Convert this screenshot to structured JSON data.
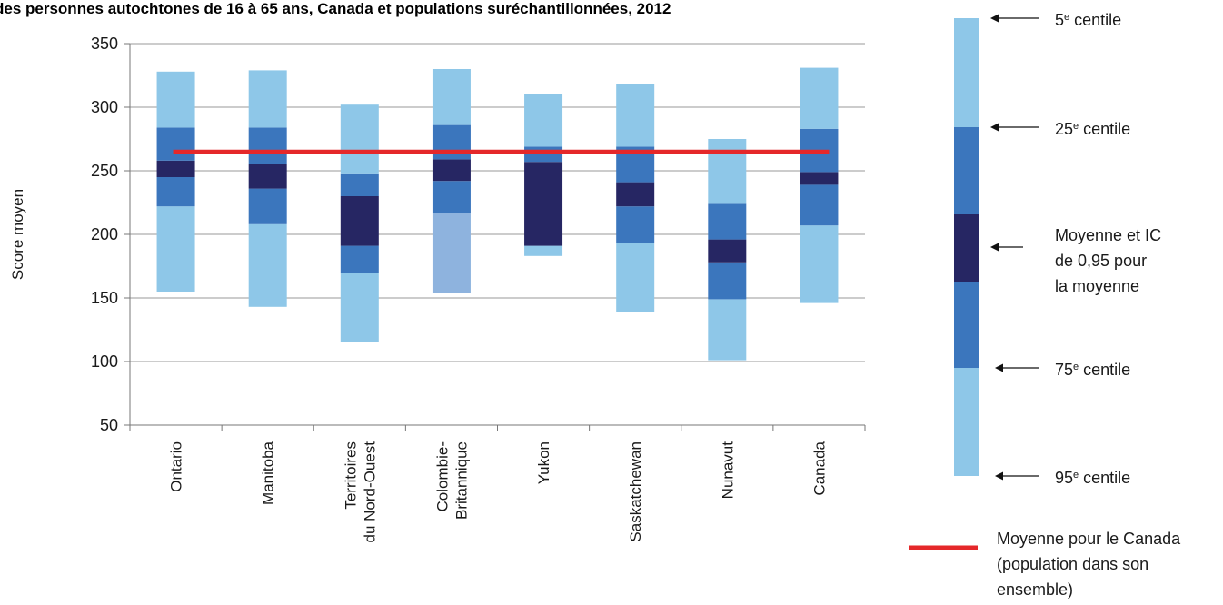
{
  "chart_data": {
    "type": "bar",
    "title": "des personnes autochtones de 16 à 65 ans, Canada et populations suréchantillonnées, 2012",
    "xlabel": "",
    "ylabel": "Score moyen",
    "ylim": [
      50,
      350
    ],
    "yticks": [
      "50",
      "100",
      "150",
      "200",
      "250",
      "300",
      "350"
    ],
    "grid": true,
    "categories": [
      "Ontario",
      "Manitoba",
      "Territoires du Nord-Ouest",
      "Colombie-Britannique",
      "Yukon",
      "Saskatchewan",
      "Nunavut",
      "Canada"
    ],
    "category_lines": [
      [
        "Ontario"
      ],
      [
        "Manitoba"
      ],
      [
        "Territoires",
        "du Nord-Ouest"
      ],
      [
        "Colombie-",
        "Britannique"
      ],
      [
        "Yukon"
      ],
      [
        "Saskatchewan"
      ],
      [
        "Nunavut"
      ],
      [
        "Canada"
      ]
    ],
    "series": [
      {
        "name": "5e centile",
        "values": [
          155,
          143,
          115,
          154,
          183,
          139,
          101,
          146
        ]
      },
      {
        "name": "25e centile",
        "values": [
          222,
          208,
          170,
          217,
          191,
          193,
          149,
          207
        ]
      },
      {
        "name": "Moyenne et IC de 0,95 pour la moyenne (bas)",
        "values": [
          245,
          236,
          191,
          242,
          191,
          222,
          178,
          239
        ]
      },
      {
        "name": "Moyenne et IC de 0,95 pour la moyenne (haut)",
        "values": [
          258,
          255,
          230,
          259,
          257,
          241,
          196,
          249
        ]
      },
      {
        "name": "75e centile",
        "values": [
          284,
          284,
          248,
          286,
          269,
          269,
          224,
          283
        ]
      },
      {
        "name": "95e centile",
        "values": [
          328,
          329,
          302,
          330,
          310,
          318,
          275,
          331
        ]
      }
    ],
    "reference_line": {
      "name": "Moyenne pour le Canada (population dans son ensemble)",
      "value": 265
    },
    "colors": {
      "outer": "#8ec7e8",
      "outer_alt": "#8eb3de",
      "inner": "#3b76bd",
      "mean_ci": "#262663",
      "reference": "#e5282a",
      "axis": "#777777",
      "grid": "#9a9a9a"
    }
  },
  "legend": {
    "labels": [
      {
        "num": "5",
        "sup": "e",
        "text": " centile"
      },
      {
        "num": "25",
        "sup": "e",
        "text": " centile"
      },
      {
        "lines": [
          "Moyenne et IC",
          "de 0,95 pour",
          "la moyenne"
        ]
      },
      {
        "num": "75",
        "sup": "e",
        "text": " centile"
      },
      {
        "num": "95",
        "sup": "e",
        "text": " centile"
      }
    ],
    "reference_lines": [
      "Moyenne pour le Canada",
      "(population dans son",
      "ensemble)"
    ]
  }
}
